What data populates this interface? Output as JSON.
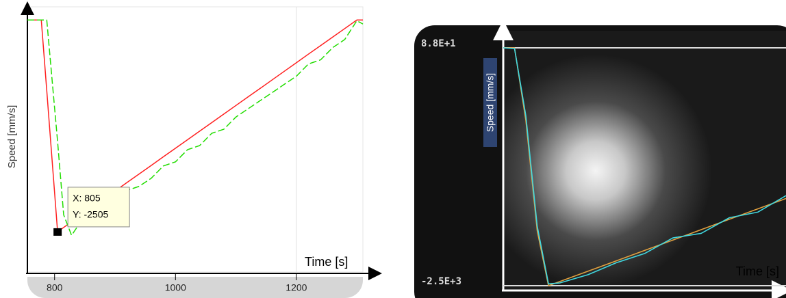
{
  "chart_data": [
    {
      "type": "line",
      "y_label": "Speed [mm/s]",
      "x_label": "Time [s]",
      "x": [
        755,
        770,
        778,
        787,
        805,
        815,
        828,
        840,
        860,
        880,
        900,
        920,
        940,
        960,
        980,
        1000,
        1020,
        1040,
        1060,
        1080,
        1100,
        1120,
        1140,
        1160,
        1180,
        1200,
        1220,
        1240,
        1260,
        1280,
        1300,
        1310
      ],
      "series": [
        {
          "color": "#ff2020",
          "values": [
            88,
            88,
            88,
            -776,
            -2505,
            -2453,
            -2384,
            -2322,
            -2217,
            -2112,
            -2007,
            -1902,
            -1798,
            -1693,
            -1588,
            -1483,
            -1378,
            -1274,
            -1169,
            -1064,
            -959,
            -854,
            -750,
            -645,
            -540,
            -435,
            -330,
            -226,
            -121,
            -16,
            88,
            88
          ]
        },
        {
          "color": "#22dd00",
          "values": [
            88,
            88,
            88,
            88,
            -1400,
            -2300,
            -2550,
            -2420,
            -2350,
            -2250,
            -2180,
            -2000,
            -1950,
            -1850,
            -1700,
            -1650,
            -1500,
            -1450,
            -1300,
            -1250,
            -1100,
            -1000,
            -900,
            -800,
            -700,
            -600,
            -450,
            -400,
            -250,
            -150,
            80,
            40
          ]
        }
      ],
      "xlim": [
        755,
        1310
      ],
      "ylim": [
        -3000,
        250
      ],
      "xticks": [
        800,
        1000,
        1200
      ],
      "datatip": {
        "x": 805,
        "y": -2505,
        "label_x": "X: 805",
        "label_y": "Y: -2505"
      }
    },
    {
      "type": "line",
      "y_label": "Speed [mm/s]",
      "x_label": "Time [s]",
      "x": [
        0,
        4,
        8,
        12,
        16,
        20,
        30,
        40,
        50,
        60,
        70,
        80,
        90,
        100
      ],
      "series": [
        {
          "color": "#e0a040",
          "values": [
            88,
            88,
            -700,
            -1900,
            -2500,
            -2455,
            -2342,
            -2229,
            -2116,
            -2003,
            -1890,
            -1777,
            -1664,
            -1551
          ]
        },
        {
          "color": "#40d8e0",
          "values": [
            88,
            80,
            -650,
            -1850,
            -2480,
            -2470,
            -2380,
            -2250,
            -2150,
            -1980,
            -1930,
            -1760,
            -1700,
            -1520
          ]
        }
      ],
      "xlim": [
        0,
        100
      ],
      "ylim": [
        -2500,
        88
      ],
      "yticks": [
        {
          "value": 88,
          "label": "8.8E+1"
        },
        {
          "value": -2500,
          "label": "-2.5E+3"
        }
      ],
      "grid": true
    }
  ]
}
